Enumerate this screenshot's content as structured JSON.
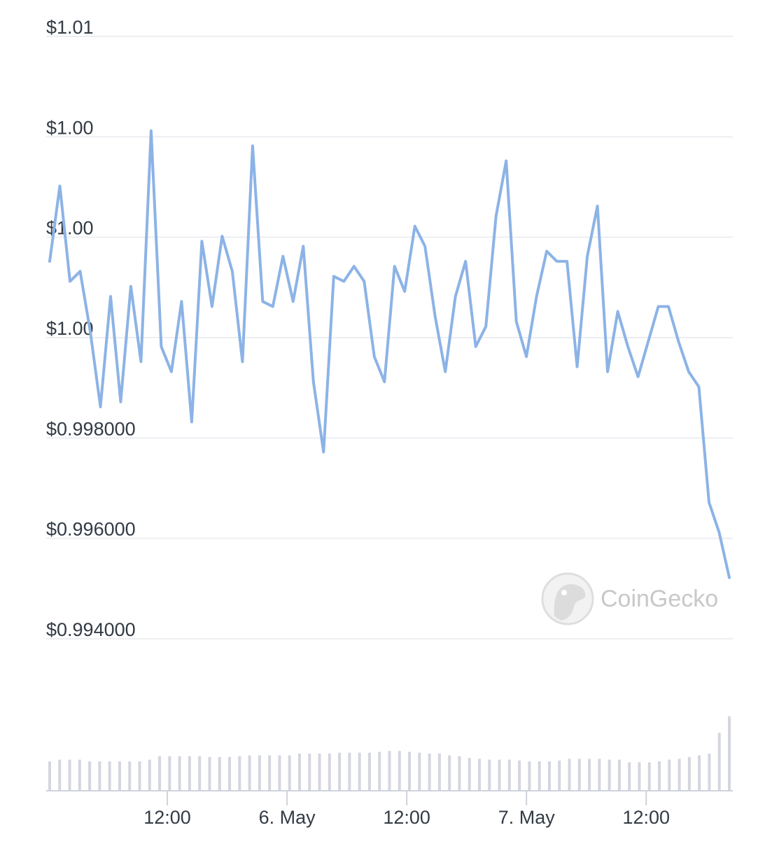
{
  "chart_data": {
    "type": "line",
    "watermark": "CoinGecko",
    "colors": {
      "line": "#8cb3e6",
      "volume": "#d4d6df",
      "grid": "#eceef2",
      "axis": "#cfd3dc",
      "tick_text": "#333b45",
      "watermark": "#c8c8c8"
    },
    "y_axis": {
      "min": 0.994,
      "max": 1.0064,
      "ticks": [
        {
          "value": 1.006,
          "label": "$1.01"
        },
        {
          "value": 1.004,
          "label": "$1.00"
        },
        {
          "value": 1.002,
          "label": "$1.00"
        },
        {
          "value": 1.0,
          "label": "$1.00"
        },
        {
          "value": 0.998,
          "label": "$0.998000"
        },
        {
          "value": 0.996,
          "label": "$0.996000"
        },
        {
          "value": 0.994,
          "label": "$0.994000"
        }
      ]
    },
    "x_axis": {
      "start_hour": 0,
      "end_hour": 57,
      "ticks": [
        {
          "hour": 10,
          "label": "12:00"
        },
        {
          "hour": 20,
          "label": "6. May"
        },
        {
          "hour": 30,
          "label": "12:00"
        },
        {
          "hour": 40,
          "label": "7. May"
        },
        {
          "hour": 50,
          "label": "12:00"
        }
      ]
    },
    "series": [
      {
        "values": [
          1.00152,
          1.00302,
          1.00112,
          1.00132,
          1.00012,
          0.99862,
          1.00082,
          0.99872,
          1.00102,
          0.99952,
          1.00412,
          0.99982,
          0.99932,
          1.00072,
          0.99832,
          1.00192,
          1.00062,
          1.00202,
          1.00132,
          0.99952,
          1.00382,
          1.00072,
          1.00062,
          1.00162,
          1.00072,
          1.00182,
          0.99912,
          0.99772,
          1.00122,
          1.00112,
          1.00142,
          1.00112,
          0.99962,
          0.99912,
          1.00142,
          1.00092,
          1.00222,
          1.00182,
          1.00042,
          0.99932,
          1.00082,
          1.00152,
          0.99982,
          1.00022,
          1.00242,
          1.00352,
          1.00032,
          0.99962,
          1.00082,
          1.00172,
          1.00152,
          1.00152,
          0.99942,
          1.00162,
          1.00262,
          0.99932,
          1.00052,
          0.99982,
          0.99922,
          0.99992,
          1.00062,
          1.00062,
          0.99992,
          0.99932,
          0.99902,
          0.99672,
          0.99612,
          0.99522
        ]
      }
    ],
    "volume_relative": [
      0.66,
      0.7,
      0.7,
      0.7,
      0.66,
      0.66,
      0.66,
      0.66,
      0.66,
      0.66,
      0.7,
      0.78,
      0.78,
      0.78,
      0.78,
      0.78,
      0.76,
      0.76,
      0.76,
      0.78,
      0.8,
      0.8,
      0.8,
      0.8,
      0.8,
      0.84,
      0.84,
      0.84,
      0.84,
      0.86,
      0.86,
      0.86,
      0.86,
      0.88,
      0.9,
      0.9,
      0.88,
      0.86,
      0.84,
      0.84,
      0.8,
      0.78,
      0.74,
      0.72,
      0.7,
      0.7,
      0.7,
      0.68,
      0.66,
      0.66,
      0.66,
      0.68,
      0.72,
      0.72,
      0.72,
      0.72,
      0.7,
      0.7,
      0.64,
      0.64,
      0.64,
      0.66,
      0.7,
      0.72,
      0.76,
      0.8,
      0.84,
      1.32,
      1.7
    ]
  }
}
